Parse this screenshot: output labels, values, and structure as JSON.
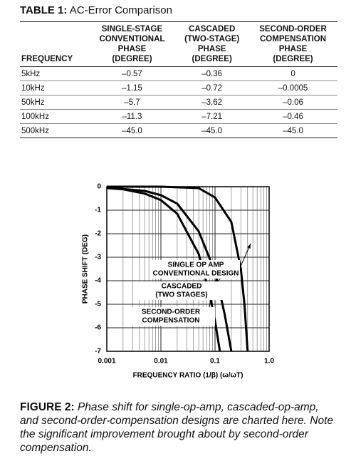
{
  "table": {
    "label": "TABLE 1:",
    "title": "AC-Error Comparison",
    "header": [
      [
        "FREQUENCY"
      ],
      [
        "SINGLE-STAGE",
        "CONVENTIONAL",
        "PHASE",
        "(DEGREE)"
      ],
      [
        "CASCADED",
        "(TWO-STAGE)",
        "PHASE",
        "(DEGREE)"
      ],
      [
        "SECOND-ORDER",
        "COMPENSATION",
        "PHASE",
        "(DEGREE)"
      ]
    ],
    "rows": [
      [
        "5kHz",
        "–0.57",
        "–0.36",
        "0"
      ],
      [
        "10kHz",
        "–1.15",
        "–0.72",
        "–0.0005"
      ],
      [
        "50kHz",
        "–5.7",
        "–3.62",
        "–0.06"
      ],
      [
        "100kHz",
        "–11.3",
        "–7.21",
        "–0.46"
      ],
      [
        "500kHz",
        "–45.0",
        "–45.0",
        "–45.0"
      ]
    ]
  },
  "chart_data": {
    "type": "line",
    "xlabel": "FREQUENCY RATIO (1/β) (ω/ωT)",
    "ylabel": "PHASE SHIFT (DEG)",
    "xlog": true,
    "xlim": [
      0.001,
      1
    ],
    "ylim": [
      -7,
      0
    ],
    "xticks": [
      0.001,
      0.01,
      0.1,
      {
        "value": 1,
        "label": "1.0"
      }
    ],
    "xminorticks": [
      0.002,
      0.003,
      0.004,
      0.005,
      0.006,
      0.007,
      0.008,
      0.009,
      0.02,
      0.03,
      0.04,
      0.05,
      0.06,
      0.07,
      0.08,
      0.09,
      0.2,
      0.3,
      0.4,
      0.5,
      0.6,
      0.7,
      0.8,
      0.9
    ],
    "yticks": [
      0,
      -1,
      -2,
      -3,
      -4,
      -5,
      -6,
      -7
    ],
    "grid": true,
    "series": [
      {
        "color": "#000000",
        "x": [
          0.001,
          0.002,
          0.005,
          0.01,
          0.02,
          0.05,
          0.08,
          0.1,
          0.123
        ],
        "values": [
          -0.06,
          -0.11,
          -0.29,
          -0.57,
          -1.15,
          -2.86,
          -4.6,
          -5.7,
          -7
        ]
      },
      {
        "color": "#000000",
        "x": [
          0.001,
          0.005,
          0.01,
          0.02,
          0.05,
          0.1,
          0.15,
          0.2
        ],
        "values": [
          -0.04,
          -0.18,
          -0.36,
          -0.72,
          -1.9,
          -3.62,
          -5.4,
          -7
        ]
      },
      {
        "color": "#000000",
        "x": [
          0.001,
          0.01,
          0.05,
          0.1,
          0.2,
          0.3,
          0.35,
          0.4
        ],
        "values": [
          0,
          -0.0005,
          -0.06,
          -0.46,
          -1.5,
          -3.5,
          -5,
          -7
        ]
      }
    ],
    "annotations": [
      [
        "SINGLE OP AMP",
        "CONVENTIONAL DESIGN"
      ],
      [
        "CASCADED",
        "(TWO STAGES)"
      ],
      [
        "SECOND-ORDER",
        "COMPENSATION"
      ]
    ]
  },
  "caption": {
    "label": "FIGURE 2:",
    "text": "Phase shift for single-op-amp, cascaded-op-amp, and second-order-compensation designs are charted here. Note the significant improvement brought about by second-order compensation."
  }
}
